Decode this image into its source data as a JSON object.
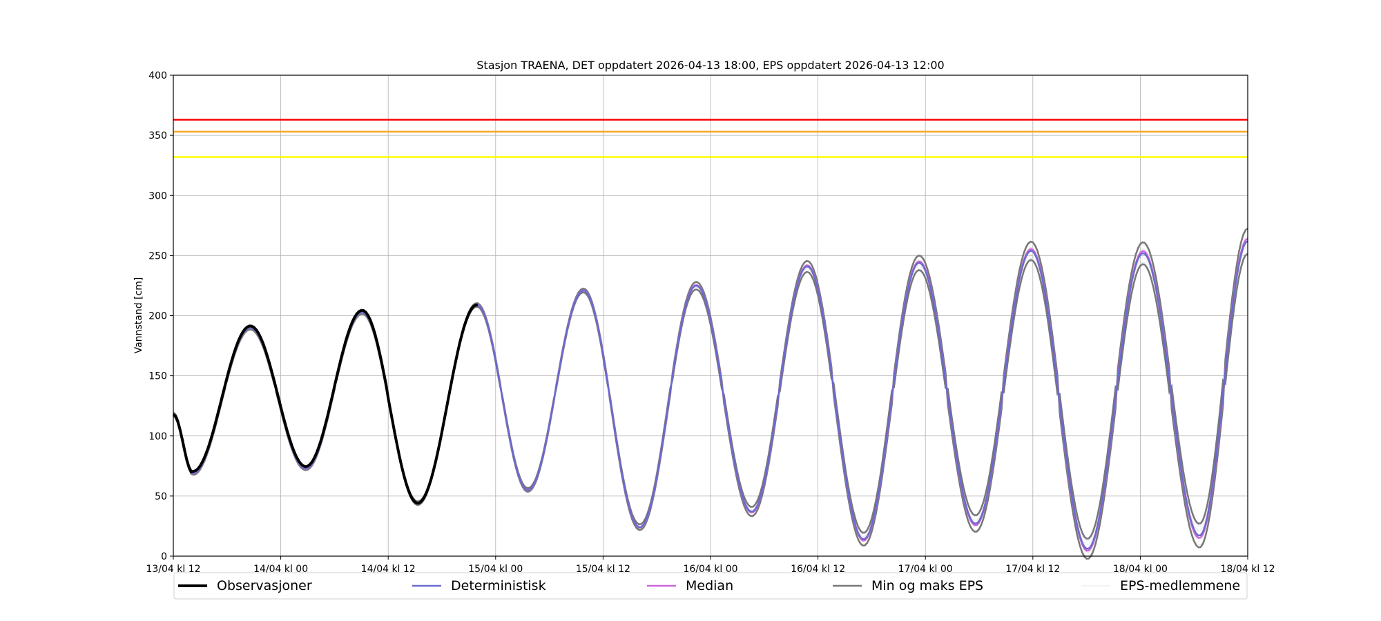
{
  "chart_data": {
    "type": "line",
    "title": "Stasjon TRAENA, DET oppdatert 2026-04-13 18:00, EPS oppdatert 2026-04-13 12:00",
    "ylabel": "Vannstand [cm]",
    "xlabel": "",
    "ylim": [
      0,
      400
    ],
    "xlim_hours": [
      0,
      120
    ],
    "yticks": [
      0,
      50,
      100,
      150,
      200,
      250,
      300,
      350,
      400
    ],
    "xtick_labels": [
      "13/04 kl 12",
      "14/04 kl 00",
      "14/04 kl 12",
      "15/04 kl 00",
      "15/04 kl 12",
      "16/04 kl 00",
      "16/04 kl 12",
      "17/04 kl 00",
      "17/04 kl 12",
      "18/04 kl 00",
      "18/04 kl 12"
    ],
    "grid": true,
    "legend_position": "bottom",
    "thresholds": [
      {
        "value": 363,
        "color": "#ff0000"
      },
      {
        "value": 353,
        "color": "#f5a623"
      },
      {
        "value": 332,
        "color": "#ffff00"
      }
    ],
    "tide_extrema": [
      [
        0,
        118
      ],
      [
        2.2,
        69
      ],
      [
        8.6,
        190
      ],
      [
        14.8,
        73
      ],
      [
        21.1,
        203
      ],
      [
        27.3,
        44
      ],
      [
        33.9,
        209
      ],
      [
        39.6,
        55
      ],
      [
        45.8,
        221
      ],
      [
        52.1,
        24
      ],
      [
        58.4,
        225
      ],
      [
        64.6,
        37
      ],
      [
        70.8,
        241
      ],
      [
        77.1,
        14
      ],
      [
        83.3,
        244
      ],
      [
        89.6,
        27
      ],
      [
        95.8,
        254
      ],
      [
        102.1,
        6
      ],
      [
        108.3,
        252
      ],
      [
        114.6,
        17
      ],
      [
        120,
        262
      ]
    ],
    "series": [
      {
        "name": "Observasjoner",
        "color": "#000000",
        "x_range_hours": [
          0,
          34.2
        ]
      },
      {
        "name": "Deterministisk",
        "color": "#6a6ad0",
        "x_range_hours": [
          0,
          120
        ]
      },
      {
        "name": "Median",
        "color": "#cc66dd",
        "x_range_hours": [
          0,
          120
        ]
      },
      {
        "name": "Min og maks EPS",
        "color": "#777777",
        "x_range_hours": [
          0,
          120
        ]
      },
      {
        "name": "EPS-medlemmene",
        "color": "#e6e6e6",
        "x_range_hours": [
          0,
          120
        ]
      }
    ]
  }
}
